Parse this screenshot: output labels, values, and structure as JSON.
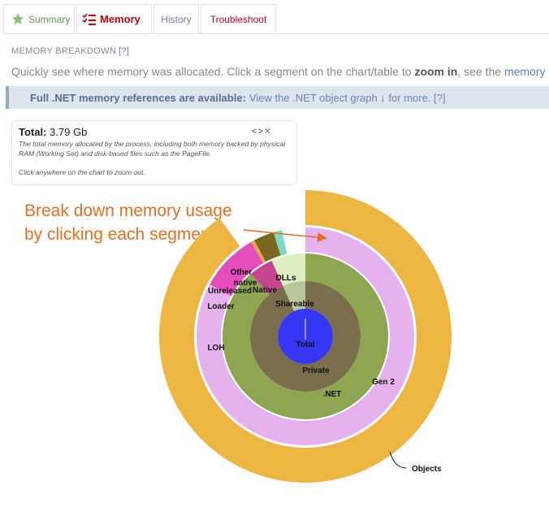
{
  "tabs": [
    {
      "label": "Summary"
    },
    {
      "label": "Memory"
    },
    {
      "label": "History"
    },
    {
      "label": "Troubleshoot"
    }
  ],
  "section": {
    "title": "MEMORY BREAKDOWN",
    "help": "[?]"
  },
  "intro": {
    "text1": "Quickly see where memory was allocated. Click a segment on the chart/table to ",
    "bold": "zoom in",
    "text2": ", see the ",
    "link": "memory det"
  },
  "notice": {
    "bold": "Full .NET memory references are available:",
    "link": "View the .NET object graph ↓ for more. [?]"
  },
  "tooltip": {
    "title": "Total:",
    "value": "3.79 Gb",
    "description": "The total memory allocated by the process, including both memory backed by physical RAM (Working Set) and disk-based files such as the PageFile.\n\nClick anywhere on the chart to zoom out.",
    "controls": "<>✕"
  },
  "callout": {
    "line1": "Break down memory usage",
    "line2": "by clicking each segment"
  },
  "chart_labels": {
    "total": "Total",
    "shareable": "Shareable",
    "private": "Private",
    "dlls": "DLLs",
    "native": "Native",
    "net": ".NET",
    "gen2": "Gen 2",
    "loh": "LOH",
    "loader": "Loader",
    "unreleased": "Unreleased",
    "other_native_1": "Other",
    "other_native_2": "native",
    "objects": "Objects"
  },
  "colors": {
    "total": "#3636f5",
    "private": "#7a6e4c",
    "shareable": "#b8c79a",
    "net": "#8ea64f",
    "dlls": "#ddeec0",
    "native": "#c5458f",
    "gen2": "#e6b2ee",
    "loh": "#e54cbc",
    "loader": "#e3a74a",
    "unreleased": "#7a6820",
    "other_native": "#7fd9c4",
    "objects": "#edb640",
    "accent_orange": "#e86e1e"
  }
}
